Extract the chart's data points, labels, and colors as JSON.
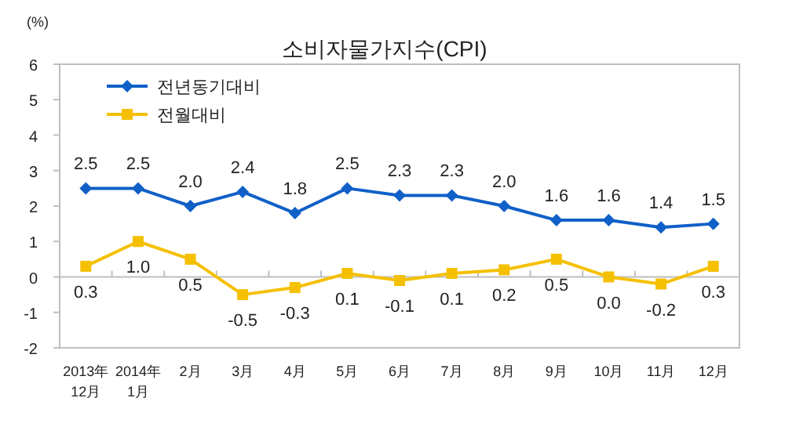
{
  "chart_data": {
    "type": "line",
    "title": "소비자물가지수(CPI)",
    "ylabel": "(%)",
    "categories": [
      "2013年\n12月",
      "2014年\n1月",
      "2月",
      "3月",
      "4月",
      "5月",
      "6月",
      "7月",
      "8月",
      "9月",
      "10月",
      "11月",
      "12月"
    ],
    "series": [
      {
        "name": "전년동기대비",
        "color": "#1060c8",
        "marker": "diamond",
        "values": [
          2.5,
          2.5,
          2.0,
          2.4,
          1.8,
          2.5,
          2.3,
          2.3,
          2.0,
          1.6,
          1.6,
          1.4,
          1.5
        ],
        "value_labels": [
          "2.5",
          "2.5",
          "2.0",
          "2.4",
          "1.8",
          "2.5",
          "2.3",
          "2.3",
          "2.0",
          "1.6",
          "1.6",
          "1.4",
          "1.5"
        ]
      },
      {
        "name": "전월대비",
        "color": "#f5c000",
        "marker": "square",
        "values": [
          0.3,
          1.0,
          0.5,
          -0.5,
          -0.3,
          0.1,
          -0.1,
          0.1,
          0.2,
          0.5,
          0.0,
          -0.2,
          0.3
        ],
        "value_labels": [
          "0.3",
          "1.0",
          "0.5",
          "-0.5",
          "-0.3",
          "0.1",
          "-0.1",
          "0.1",
          "0.2",
          "0.5",
          "0.0",
          "-0.2",
          "0.3"
        ]
      }
    ],
    "ylim": [
      -2,
      6
    ],
    "yticks": [
      -2,
      -1,
      0,
      1,
      2,
      3,
      4,
      5,
      6
    ],
    "legend": "top left",
    "line_style": "solid"
  }
}
